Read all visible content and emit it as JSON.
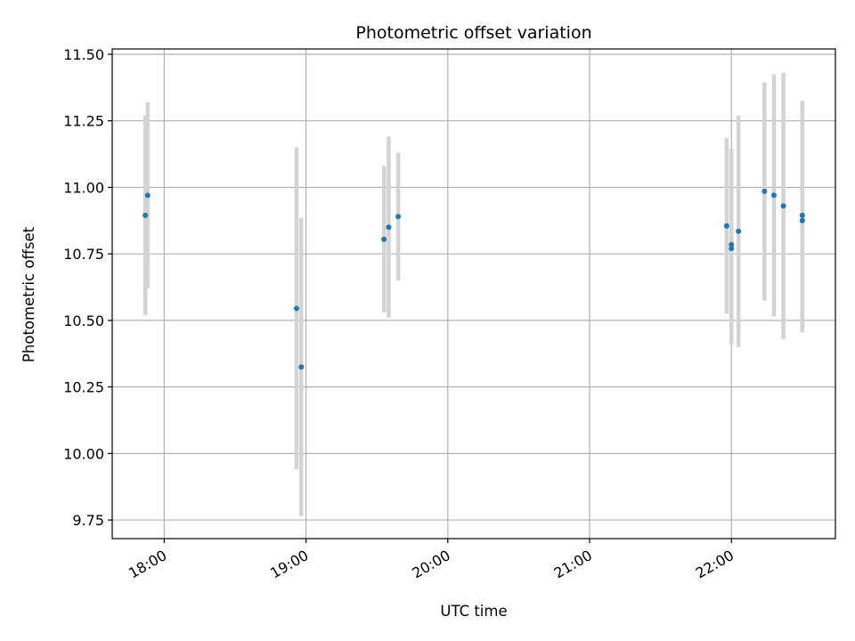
{
  "chart_data": {
    "type": "scatter",
    "title": "Photometric offset variation",
    "xlabel": "UTC time",
    "ylabel": "Photometric offset",
    "x_ticks": [
      "18:00",
      "19:00",
      "20:00",
      "21:00",
      "22:00"
    ],
    "y_ticks": [
      "9.75",
      "10.00",
      "10.25",
      "10.50",
      "10.75",
      "11.00",
      "11.25",
      "11.50"
    ],
    "xlim": [
      "17:38",
      "22:44"
    ],
    "ylim": [
      9.68,
      11.52
    ],
    "grid": true,
    "legend": "none",
    "colors": {
      "marker": "#1f77b4",
      "errorbar": "#d3d3d3",
      "grid": "#b0b0b0"
    },
    "points": [
      {
        "x": "17:52",
        "y": 10.895,
        "yerr": 0.375
      },
      {
        "x": "17:53",
        "y": 10.97,
        "yerr": 0.35
      },
      {
        "x": "18:56",
        "y": 10.545,
        "yerr": 0.605
      },
      {
        "x": "18:58",
        "y": 10.325,
        "yerr": 0.56
      },
      {
        "x": "19:33",
        "y": 10.805,
        "yerr": 0.275
      },
      {
        "x": "19:35",
        "y": 10.85,
        "yerr": 0.34
      },
      {
        "x": "19:39",
        "y": 10.89,
        "yerr": 0.24
      },
      {
        "x": "21:58",
        "y": 10.855,
        "yerr": 0.33
      },
      {
        "x": "22:00",
        "y": 10.77,
        "yerr": 0.36
      },
      {
        "x": "22:00",
        "y": 10.785,
        "yerr": 0.36
      },
      {
        "x": "22:03",
        "y": 10.835,
        "yerr": 0.435
      },
      {
        "x": "22:14",
        "y": 10.985,
        "yerr": 0.41
      },
      {
        "x": "22:18",
        "y": 10.97,
        "yerr": 0.455
      },
      {
        "x": "22:22",
        "y": 10.93,
        "yerr": 0.5
      },
      {
        "x": "22:30",
        "y": 10.875,
        "yerr": 0.42
      },
      {
        "x": "22:30",
        "y": 10.895,
        "yerr": 0.43
      }
    ]
  }
}
